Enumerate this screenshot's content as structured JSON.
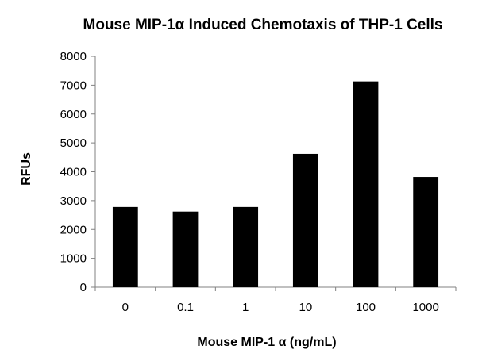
{
  "chart_data": {
    "type": "bar",
    "title": "Mouse MIP-1α Induced Chemotaxis of THP-1 Cells",
    "xlabel": "Mouse MIP-1 α (ng/mL)",
    "ylabel": "RFUs",
    "categories": [
      "0",
      "0.1",
      "1",
      "10",
      "100",
      "1000"
    ],
    "values": [
      2780,
      2620,
      2780,
      4620,
      7130,
      3820
    ],
    "ylim": [
      0,
      8000
    ],
    "yticks": [
      0,
      1000,
      2000,
      3000,
      4000,
      5000,
      6000,
      7000,
      8000
    ],
    "grid": false,
    "legend": "none",
    "bar_color": "#000000"
  }
}
